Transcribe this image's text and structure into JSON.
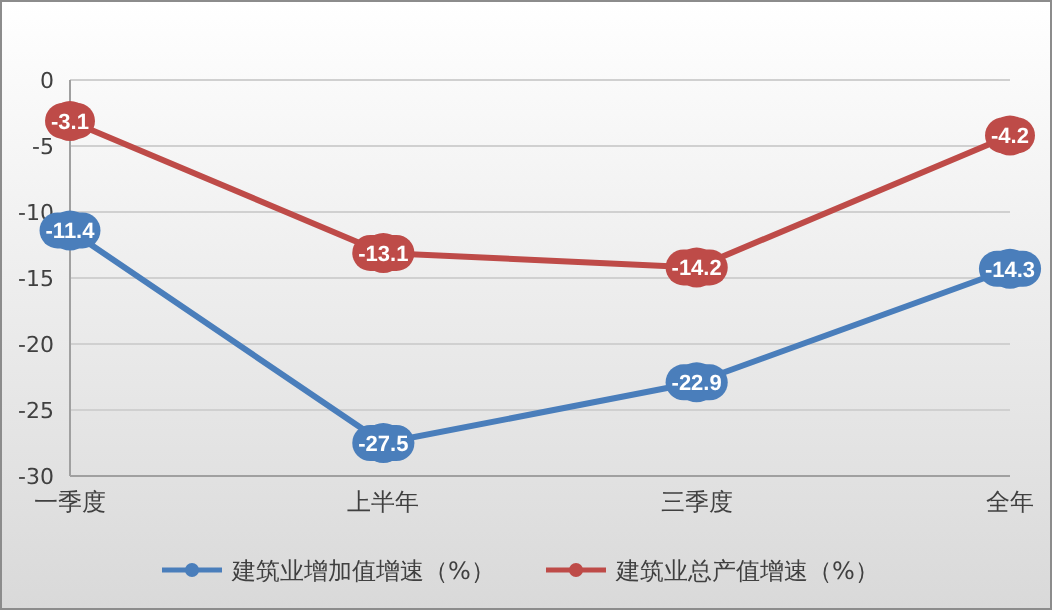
{
  "chart_data": {
    "type": "line",
    "categories": [
      "一季度",
      "上半年",
      "三季度",
      "全年"
    ],
    "series": [
      {
        "name": "建筑业增加值增速（%）",
        "color": "#4a7ebb",
        "values": [
          -11.4,
          -27.5,
          -22.9,
          -14.3
        ]
      },
      {
        "name": "建筑业总产值增速（%）",
        "color": "#be4b48",
        "values": [
          -3.1,
          -13.1,
          -14.2,
          -4.2
        ]
      }
    ],
    "ylim": [
      -30,
      0
    ],
    "yticks": [
      0,
      -5,
      -10,
      -15,
      -20,
      -25,
      -30
    ],
    "grid": "y",
    "legend": "bottom",
    "marker": "circle",
    "data_labels": true
  }
}
